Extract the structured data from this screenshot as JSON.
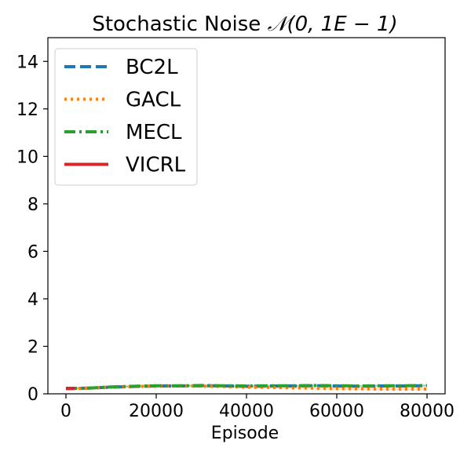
{
  "chart_data": {
    "type": "line",
    "title_prefix": "Stochastic Noise ",
    "title_math": "𝒩(0, 1E − 1)",
    "xlabel": "Episode",
    "ylabel": "",
    "xlim": [
      -4000,
      84000
    ],
    "ylim": [
      0,
      15
    ],
    "xticks": [
      0,
      20000,
      40000,
      60000,
      80000
    ],
    "xtick_labels": [
      "0",
      "20000",
      "40000",
      "60000",
      "80000"
    ],
    "yticks": [
      0,
      2,
      4,
      6,
      8,
      10,
      12,
      14
    ],
    "ytick_labels": [
      "0",
      "2",
      "4",
      "6",
      "8",
      "10",
      "12",
      "14"
    ],
    "legend_position": "upper-left",
    "grid": false,
    "series": [
      {
        "name": "BC2L",
        "color": "#1f77b4",
        "style": "dashed",
        "x": [
          0,
          5000,
          10000,
          15000,
          20000,
          25000,
          30000,
          35000,
          40000,
          45000,
          50000,
          55000,
          60000,
          65000,
          70000,
          75000,
          80000
        ],
        "y": [
          0.22,
          0.24,
          0.28,
          0.31,
          0.33,
          0.33,
          0.34,
          0.33,
          0.32,
          0.33,
          0.33,
          0.34,
          0.33,
          0.32,
          0.33,
          0.33,
          0.34
        ],
        "band": 0.04
      },
      {
        "name": "GACL",
        "color": "#ff7f0e",
        "style": "dotted",
        "x": [
          0,
          5000,
          10000,
          15000,
          20000,
          25000,
          30000,
          35000,
          40000,
          45000,
          50000,
          55000,
          60000,
          65000,
          70000,
          75000,
          80000
        ],
        "y": [
          0.22,
          0.24,
          0.28,
          0.31,
          0.32,
          0.33,
          0.32,
          0.31,
          0.28,
          0.27,
          0.25,
          0.24,
          0.22,
          0.21,
          0.2,
          0.2,
          0.2
        ],
        "band": 0.05
      },
      {
        "name": "MECL",
        "color": "#2ca02c",
        "style": "dashdot",
        "x": [
          0,
          5000,
          10000,
          15000,
          20000,
          25000,
          30000,
          35000,
          40000,
          45000,
          50000,
          55000,
          60000,
          65000,
          70000,
          75000,
          80000
        ],
        "y": [
          0.22,
          0.24,
          0.29,
          0.32,
          0.34,
          0.34,
          0.35,
          0.34,
          0.33,
          0.34,
          0.34,
          0.35,
          0.34,
          0.33,
          0.34,
          0.34,
          0.35
        ],
        "band": 0.05
      },
      {
        "name": "VICRL",
        "color": "#d62728",
        "style": "solid",
        "x": [
          0,
          1000,
          2000
        ],
        "y": [
          0.23,
          0.23,
          0.23
        ],
        "band": 0.02
      }
    ]
  }
}
